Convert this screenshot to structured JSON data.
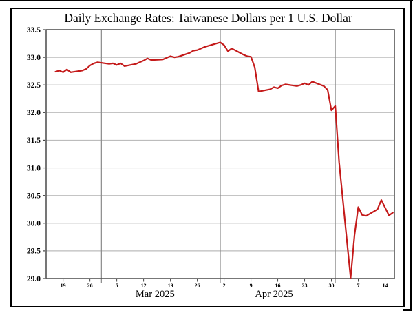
{
  "page": {
    "title": "Daily Exchange Rates: Taiwanese Dollars per 1 U.S. Dollar"
  },
  "colors": {
    "line": "#c41a1a",
    "frame": "#000000",
    "plot_border": "#555555",
    "gridline": "#bcbcbc",
    "month_divider": "#8a8a8a",
    "tick": "#444444",
    "text": "#000000"
  },
  "chart_data": {
    "type": "line",
    "title": "Daily Exchange Rates: Taiwanese Dollars per 1 U.S. Dollar",
    "series_name": "Taiwanese Dollars per 1 U.S. Dollar",
    "grid": true,
    "legend": "none",
    "y_axis": {
      "min": 29.0,
      "max": 33.5,
      "step": 0.5,
      "tick_labels": [
        "33.5",
        "33.0",
        "32.5",
        "32.0",
        "31.5",
        "31.0",
        "30.5",
        "30.0",
        "29.5",
        "29.0"
      ]
    },
    "x_axis": {
      "start_date": "2025-02-17",
      "end_date": "2025-05-16",
      "tick_dates": [
        "2025-02-19",
        "2025-02-26",
        "2025-03-05",
        "2025-03-12",
        "2025-03-19",
        "2025-03-26",
        "2025-04-02",
        "2025-04-09",
        "2025-04-16",
        "2025-04-23",
        "2025-04-30",
        "2025-05-07",
        "2025-05-14"
      ],
      "tick_labels": [
        "19",
        "26",
        "5",
        "12",
        "19",
        "26",
        "2",
        "9",
        "16",
        "23",
        "30",
        "7",
        "14"
      ],
      "month_dividers": [
        "2025-03-01",
        "2025-04-01",
        "2025-05-01"
      ],
      "month_labels": [
        {
          "label": "Mar 2025",
          "center_date": "2025-03-15"
        },
        {
          "label": "Apr 2025",
          "center_date": "2025-04-15"
        }
      ]
    },
    "points": [
      {
        "date": "2025-02-17",
        "value": 32.74
      },
      {
        "date": "2025-02-18",
        "value": 32.76
      },
      {
        "date": "2025-02-19",
        "value": 32.73
      },
      {
        "date": "2025-02-20",
        "value": 32.78
      },
      {
        "date": "2025-02-21",
        "value": 32.73
      },
      {
        "date": "2025-02-24",
        "value": 32.76
      },
      {
        "date": "2025-02-25",
        "value": 32.79
      },
      {
        "date": "2025-02-26",
        "value": 32.85
      },
      {
        "date": "2025-02-27",
        "value": 32.89
      },
      {
        "date": "2025-02-28",
        "value": 32.91
      },
      {
        "date": "2025-03-03",
        "value": 32.88
      },
      {
        "date": "2025-03-04",
        "value": 32.89
      },
      {
        "date": "2025-03-05",
        "value": 32.86
      },
      {
        "date": "2025-03-06",
        "value": 32.89
      },
      {
        "date": "2025-03-07",
        "value": 32.84
      },
      {
        "date": "2025-03-10",
        "value": 32.88
      },
      {
        "date": "2025-03-11",
        "value": 32.91
      },
      {
        "date": "2025-03-12",
        "value": 32.94
      },
      {
        "date": "2025-03-13",
        "value": 32.98
      },
      {
        "date": "2025-03-14",
        "value": 32.95
      },
      {
        "date": "2025-03-17",
        "value": 32.96
      },
      {
        "date": "2025-03-18",
        "value": 32.99
      },
      {
        "date": "2025-03-19",
        "value": 33.02
      },
      {
        "date": "2025-03-20",
        "value": 33.0
      },
      {
        "date": "2025-03-21",
        "value": 33.01
      },
      {
        "date": "2025-03-24",
        "value": 33.08
      },
      {
        "date": "2025-03-25",
        "value": 33.12
      },
      {
        "date": "2025-03-26",
        "value": 33.13
      },
      {
        "date": "2025-03-27",
        "value": 33.16
      },
      {
        "date": "2025-03-28",
        "value": 33.19
      },
      {
        "date": "2025-03-31",
        "value": 33.25
      },
      {
        "date": "2025-04-01",
        "value": 33.27
      },
      {
        "date": "2025-04-02",
        "value": 33.22
      },
      {
        "date": "2025-04-03",
        "value": 33.11
      },
      {
        "date": "2025-04-04",
        "value": 33.16
      },
      {
        "date": "2025-04-07",
        "value": 33.05
      },
      {
        "date": "2025-04-08",
        "value": 33.02
      },
      {
        "date": "2025-04-09",
        "value": 33.01
      },
      {
        "date": "2025-04-10",
        "value": 32.82
      },
      {
        "date": "2025-04-11",
        "value": 32.38
      },
      {
        "date": "2025-04-14",
        "value": 32.42
      },
      {
        "date": "2025-04-15",
        "value": 32.46
      },
      {
        "date": "2025-04-16",
        "value": 32.44
      },
      {
        "date": "2025-04-17",
        "value": 32.49
      },
      {
        "date": "2025-04-18",
        "value": 32.51
      },
      {
        "date": "2025-04-21",
        "value": 32.48
      },
      {
        "date": "2025-04-22",
        "value": 32.5
      },
      {
        "date": "2025-04-23",
        "value": 32.53
      },
      {
        "date": "2025-04-24",
        "value": 32.5
      },
      {
        "date": "2025-04-25",
        "value": 32.56
      },
      {
        "date": "2025-04-28",
        "value": 32.48
      },
      {
        "date": "2025-04-29",
        "value": 32.41
      },
      {
        "date": "2025-04-30",
        "value": 32.04
      },
      {
        "date": "2025-05-01",
        "value": 32.12
      },
      {
        "date": "2025-05-02",
        "value": 31.1
      },
      {
        "date": "2025-05-05",
        "value": 29.01
      },
      {
        "date": "2025-05-06",
        "value": 29.78
      },
      {
        "date": "2025-05-07",
        "value": 30.29
      },
      {
        "date": "2025-05-08",
        "value": 30.15
      },
      {
        "date": "2025-05-09",
        "value": 30.13
      },
      {
        "date": "2025-05-12",
        "value": 30.25
      },
      {
        "date": "2025-05-13",
        "value": 30.42
      },
      {
        "date": "2025-05-14",
        "value": 30.28
      },
      {
        "date": "2025-05-15",
        "value": 30.14
      },
      {
        "date": "2025-05-16",
        "value": 30.19
      }
    ]
  }
}
